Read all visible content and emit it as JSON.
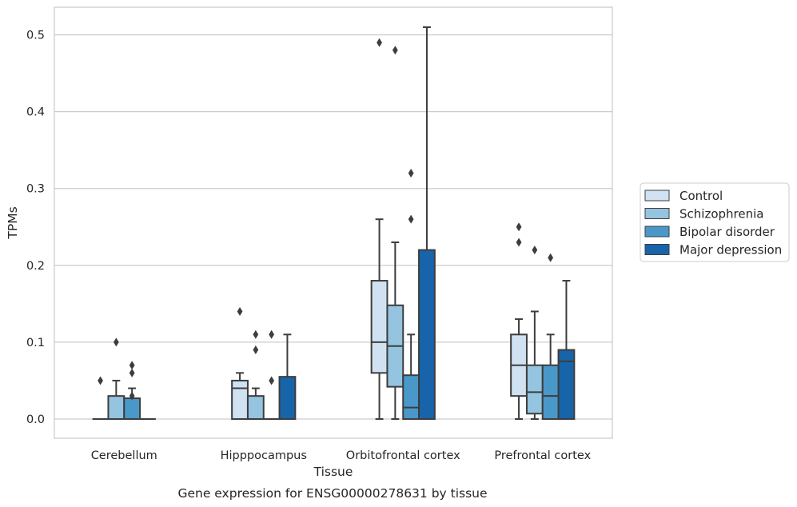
{
  "chart_data": {
    "type": "box",
    "title": "",
    "caption": "Gene expression for ENSG00000278631 by tissue",
    "xlabel": "Tissue",
    "ylabel": "TPMs",
    "ylim": [
      -0.025,
      0.536
    ],
    "yticks": [
      0.0,
      0.1,
      0.2,
      0.3,
      0.4,
      0.5
    ],
    "ytick_labels": [
      "0.0",
      "0.1",
      "0.2",
      "0.3",
      "0.4",
      "0.5"
    ],
    "categories": [
      "Cerebellum",
      "Hipppocampus",
      "Orbitofrontal cortex",
      "Prefrontal cortex"
    ],
    "grid": true,
    "legend_position": "outside-right",
    "series": [
      {
        "name": "Control",
        "color": "#d0e1f2",
        "boxes": [
          {
            "q1": 0.0,
            "median": 0.0,
            "q3": 0.0,
            "whislo": 0.0,
            "whishi": 0.0,
            "fliers": [
              0.05
            ]
          },
          {
            "q1": 0.0,
            "median": 0.04,
            "q3": 0.05,
            "whislo": 0.0,
            "whishi": 0.06,
            "fliers": [
              0.14
            ]
          },
          {
            "q1": 0.06,
            "median": 0.1,
            "q3": 0.18,
            "whislo": 0.0,
            "whishi": 0.26,
            "fliers": [
              0.49
            ]
          },
          {
            "q1": 0.03,
            "median": 0.07,
            "q3": 0.11,
            "whislo": 0.0,
            "whishi": 0.13,
            "fliers": [
              0.23,
              0.25
            ]
          }
        ]
      },
      {
        "name": "Schizophrenia",
        "color": "#94c4df",
        "boxes": [
          {
            "q1": 0.0,
            "median": 0.0,
            "q3": 0.03,
            "whislo": 0.0,
            "whishi": 0.05,
            "fliers": [
              0.1
            ]
          },
          {
            "q1": 0.0,
            "median": 0.0,
            "q3": 0.03,
            "whislo": 0.0,
            "whishi": 0.04,
            "fliers": [
              0.09,
              0.11
            ]
          },
          {
            "q1": 0.042,
            "median": 0.095,
            "q3": 0.148,
            "whislo": 0.0,
            "whishi": 0.23,
            "fliers": [
              0.48
            ]
          },
          {
            "q1": 0.007,
            "median": 0.035,
            "q3": 0.07,
            "whislo": 0.0,
            "whishi": 0.14,
            "fliers": [
              0.22
            ]
          }
        ]
      },
      {
        "name": "Bipolar disorder",
        "color": "#4a98c9",
        "boxes": [
          {
            "q1": 0.0,
            "median": 0.0,
            "q3": 0.027,
            "whislo": 0.0,
            "whishi": 0.04,
            "fliers": [
              0.03,
              0.06,
              0.07
            ]
          },
          {
            "q1": 0.0,
            "median": 0.0,
            "q3": 0.0,
            "whislo": 0.0,
            "whishi": 0.0,
            "fliers": [
              0.05,
              0.11
            ]
          },
          {
            "q1": 0.0,
            "median": 0.015,
            "q3": 0.057,
            "whislo": 0.0,
            "whishi": 0.11,
            "fliers": [
              0.26,
              0.32
            ]
          },
          {
            "q1": 0.0,
            "median": 0.03,
            "q3": 0.07,
            "whislo": 0.0,
            "whishi": 0.11,
            "fliers": [
              0.21
            ]
          }
        ]
      },
      {
        "name": "Major depression",
        "color": "#1764ab",
        "boxes": [
          {
            "q1": 0.0,
            "median": 0.0,
            "q3": 0.0,
            "whislo": 0.0,
            "whishi": 0.0,
            "fliers": []
          },
          {
            "q1": 0.0,
            "median": 0.0,
            "q3": 0.055,
            "whislo": 0.0,
            "whishi": 0.11,
            "fliers": []
          },
          {
            "q1": 0.0,
            "median": 0.0,
            "q3": 0.22,
            "whislo": 0.0,
            "whishi": 0.51,
            "fliers": []
          },
          {
            "q1": 0.0,
            "median": 0.075,
            "q3": 0.09,
            "whislo": 0.0,
            "whishi": 0.18,
            "fliers": []
          }
        ]
      }
    ]
  }
}
